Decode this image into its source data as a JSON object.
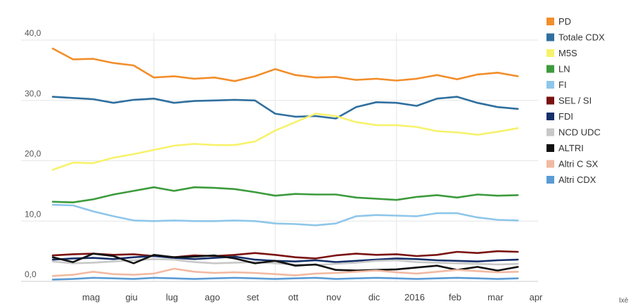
{
  "chart_data": {
    "type": "line",
    "title": "",
    "xlabel": "",
    "ylabel": "",
    "ylim": [
      0,
      40
    ],
    "y_ticks": [
      "0,0",
      "10,0",
      "20,0",
      "30,0",
      "40,0"
    ],
    "x_ticks": [
      "mag",
      "giu",
      "lug",
      "ago",
      "set",
      "ott",
      "nov",
      "dic",
      "2016",
      "feb",
      "mar",
      "apr"
    ],
    "x_range": [
      0,
      12
    ],
    "legend_position": "right",
    "source": "Ixè",
    "series": [
      {
        "name": "PD",
        "color": "#f28e2b",
        "points": [
          [
            0,
            38.6
          ],
          [
            0.5,
            36.8
          ],
          [
            1,
            36.9
          ],
          [
            1.5,
            36.2
          ],
          [
            2,
            35.8
          ],
          [
            2.5,
            33.8
          ],
          [
            3,
            34.0
          ],
          [
            3.5,
            33.6
          ],
          [
            4,
            33.8
          ],
          [
            4.5,
            33.2
          ],
          [
            5,
            34.0
          ],
          [
            5.5,
            35.2
          ],
          [
            6,
            34.2
          ],
          [
            6.5,
            33.8
          ],
          [
            7,
            33.9
          ],
          [
            7.5,
            33.4
          ],
          [
            8,
            33.6
          ],
          [
            8.5,
            33.3
          ],
          [
            9,
            33.6
          ],
          [
            9.5,
            34.2
          ],
          [
            10,
            33.5
          ],
          [
            10.5,
            34.3
          ],
          [
            11,
            34.6
          ],
          [
            11.5,
            34.0
          ]
        ]
      },
      {
        "name": "Totale CDX",
        "color": "#2f6f9f",
        "points": [
          [
            0,
            30.6
          ],
          [
            0.5,
            30.4
          ],
          [
            1,
            30.2
          ],
          [
            1.5,
            29.6
          ],
          [
            2,
            30.1
          ],
          [
            2.5,
            30.3
          ],
          [
            3,
            29.6
          ],
          [
            3.5,
            29.9
          ],
          [
            4,
            30.0
          ],
          [
            4.5,
            30.1
          ],
          [
            5,
            30.0
          ],
          [
            5.5,
            27.8
          ],
          [
            6,
            27.3
          ],
          [
            6.5,
            27.4
          ],
          [
            7,
            27.0
          ],
          [
            7.5,
            28.9
          ],
          [
            8,
            29.7
          ],
          [
            8.5,
            29.6
          ],
          [
            9,
            29.1
          ],
          [
            9.5,
            30.3
          ],
          [
            10,
            30.6
          ],
          [
            10.5,
            29.6
          ],
          [
            11,
            28.9
          ],
          [
            11.5,
            28.6
          ]
        ]
      },
      {
        "name": "M5S",
        "color": "#f7f26b",
        "points": [
          [
            0,
            18.5
          ],
          [
            0.5,
            19.7
          ],
          [
            1,
            19.6
          ],
          [
            1.5,
            20.5
          ],
          [
            2,
            21.1
          ],
          [
            2.5,
            21.8
          ],
          [
            3,
            22.5
          ],
          [
            3.5,
            22.8
          ],
          [
            4,
            22.6
          ],
          [
            4.5,
            22.6
          ],
          [
            5,
            23.2
          ],
          [
            5.5,
            25.0
          ],
          [
            6,
            26.4
          ],
          [
            6.5,
            27.8
          ],
          [
            7,
            27.4
          ],
          [
            7.5,
            26.4
          ],
          [
            8,
            25.9
          ],
          [
            8.5,
            25.9
          ],
          [
            9,
            25.6
          ],
          [
            9.5,
            24.9
          ],
          [
            10,
            24.7
          ],
          [
            10.5,
            24.3
          ],
          [
            11,
            24.8
          ],
          [
            11.5,
            25.4
          ]
        ]
      },
      {
        "name": "LN",
        "color": "#3c9b3c",
        "points": [
          [
            0,
            13.2
          ],
          [
            0.5,
            13.1
          ],
          [
            1,
            13.6
          ],
          [
            1.5,
            14.4
          ],
          [
            2,
            15.0
          ],
          [
            2.5,
            15.6
          ],
          [
            3,
            15.0
          ],
          [
            3.5,
            15.6
          ],
          [
            4,
            15.5
          ],
          [
            4.5,
            15.3
          ],
          [
            5,
            14.8
          ],
          [
            5.5,
            14.2
          ],
          [
            6,
            14.5
          ],
          [
            6.5,
            14.4
          ],
          [
            7,
            14.4
          ],
          [
            7.5,
            13.9
          ],
          [
            8,
            13.7
          ],
          [
            8.5,
            13.5
          ],
          [
            9,
            14.0
          ],
          [
            9.5,
            14.3
          ],
          [
            10,
            13.9
          ],
          [
            10.5,
            14.4
          ],
          [
            11,
            14.2
          ],
          [
            11.5,
            14.3
          ]
        ]
      },
      {
        "name": "FI",
        "color": "#8ec6ea",
        "points": [
          [
            0,
            12.7
          ],
          [
            0.5,
            12.6
          ],
          [
            1,
            11.6
          ],
          [
            1.5,
            10.8
          ],
          [
            2,
            10.1
          ],
          [
            2.5,
            10.0
          ],
          [
            3,
            10.1
          ],
          [
            3.5,
            10.0
          ],
          [
            4,
            10.0
          ],
          [
            4.5,
            10.1
          ],
          [
            5,
            10.0
          ],
          [
            5.5,
            9.6
          ],
          [
            6,
            9.5
          ],
          [
            6.5,
            9.3
          ],
          [
            7,
            9.6
          ],
          [
            7.5,
            10.8
          ],
          [
            8,
            11.0
          ],
          [
            8.5,
            10.9
          ],
          [
            9,
            10.8
          ],
          [
            9.5,
            11.3
          ],
          [
            10,
            11.3
          ],
          [
            10.5,
            10.6
          ],
          [
            11,
            10.2
          ],
          [
            11.5,
            10.1
          ]
        ]
      },
      {
        "name": "SEL / SI",
        "color": "#7a1212",
        "points": [
          [
            0,
            4.3
          ],
          [
            0.5,
            4.5
          ],
          [
            1,
            4.6
          ],
          [
            1.5,
            4.4
          ],
          [
            2,
            4.5
          ],
          [
            2.5,
            4.2
          ],
          [
            3,
            4.0
          ],
          [
            3.5,
            4.3
          ],
          [
            4,
            4.2
          ],
          [
            4.5,
            4.4
          ],
          [
            5,
            4.7
          ],
          [
            5.5,
            4.4
          ],
          [
            6,
            4.0
          ],
          [
            6.5,
            3.8
          ],
          [
            7,
            4.3
          ],
          [
            7.5,
            4.6
          ],
          [
            8,
            4.4
          ],
          [
            8.5,
            4.5
          ],
          [
            9,
            4.2
          ],
          [
            9.5,
            4.4
          ],
          [
            10,
            4.9
          ],
          [
            10.5,
            4.7
          ],
          [
            11,
            5.0
          ],
          [
            11.5,
            4.9
          ]
        ]
      },
      {
        "name": "FDI",
        "color": "#15306a",
        "points": [
          [
            0,
            3.6
          ],
          [
            0.5,
            3.8
          ],
          [
            1,
            3.9
          ],
          [
            1.5,
            3.7
          ],
          [
            2,
            4.0
          ],
          [
            2.5,
            4.2
          ],
          [
            3,
            3.9
          ],
          [
            3.5,
            3.7
          ],
          [
            4,
            3.9
          ],
          [
            4.5,
            4.1
          ],
          [
            5,
            3.6
          ],
          [
            5.5,
            3.4
          ],
          [
            6,
            3.3
          ],
          [
            6.5,
            3.5
          ],
          [
            7,
            3.2
          ],
          [
            7.5,
            3.4
          ],
          [
            8,
            3.6
          ],
          [
            8.5,
            3.8
          ],
          [
            9,
            3.7
          ],
          [
            9.5,
            3.5
          ],
          [
            10,
            3.4
          ],
          [
            10.5,
            3.3
          ],
          [
            11,
            3.5
          ],
          [
            11.5,
            3.6
          ]
        ]
      },
      {
        "name": "NCD UDC",
        "color": "#c8c8c8",
        "points": [
          [
            0,
            3.3
          ],
          [
            0.5,
            3.0
          ],
          [
            1,
            3.1
          ],
          [
            1.5,
            3.3
          ],
          [
            2,
            3.5
          ],
          [
            2.5,
            3.7
          ],
          [
            3,
            3.6
          ],
          [
            3.5,
            3.2
          ],
          [
            4,
            3.0
          ],
          [
            4.5,
            3.1
          ],
          [
            5,
            3.2
          ],
          [
            5.5,
            3.0
          ],
          [
            6,
            2.8
          ],
          [
            6.5,
            2.7
          ],
          [
            7,
            2.9
          ],
          [
            7.5,
            3.1
          ],
          [
            8,
            3.4
          ],
          [
            8.5,
            3.5
          ],
          [
            9,
            3.2
          ],
          [
            9.5,
            3.1
          ],
          [
            10,
            3.0
          ],
          [
            10.5,
            2.9
          ],
          [
            11,
            2.8
          ],
          [
            11.5,
            2.9
          ]
        ]
      },
      {
        "name": "ALTRI",
        "color": "#111111",
        "points": [
          [
            0,
            4.0
          ],
          [
            0.5,
            3.2
          ],
          [
            1,
            4.6
          ],
          [
            1.5,
            4.2
          ],
          [
            2,
            3.0
          ],
          [
            2.5,
            4.4
          ],
          [
            3,
            4.0
          ],
          [
            3.5,
            4.1
          ],
          [
            4,
            4.3
          ],
          [
            4.5,
            3.8
          ],
          [
            5,
            3.0
          ],
          [
            5.5,
            3.4
          ],
          [
            6,
            2.6
          ],
          [
            6.5,
            2.8
          ],
          [
            7,
            1.9
          ],
          [
            7.5,
            1.8
          ],
          [
            8,
            1.9
          ],
          [
            8.5,
            2.0
          ],
          [
            9,
            2.3
          ],
          [
            9.5,
            2.6
          ],
          [
            10,
            1.9
          ],
          [
            10.5,
            2.4
          ],
          [
            11,
            1.8
          ],
          [
            11.5,
            2.4
          ]
        ]
      },
      {
        "name": "Altri C SX",
        "color": "#f2b9a2",
        "points": [
          [
            0,
            0.9
          ],
          [
            0.5,
            1.1
          ],
          [
            1,
            1.6
          ],
          [
            1.5,
            1.2
          ],
          [
            2,
            1.1
          ],
          [
            2.5,
            1.3
          ],
          [
            3,
            2.1
          ],
          [
            3.5,
            1.6
          ],
          [
            4,
            1.4
          ],
          [
            4.5,
            1.5
          ],
          [
            5,
            1.4
          ],
          [
            5.5,
            1.2
          ],
          [
            6,
            1.0
          ],
          [
            6.5,
            1.3
          ],
          [
            7,
            1.4
          ],
          [
            7.5,
            1.6
          ],
          [
            8,
            1.8
          ],
          [
            8.5,
            1.5
          ],
          [
            9,
            1.3
          ],
          [
            9.5,
            1.6
          ],
          [
            10,
            1.9
          ],
          [
            10.5,
            1.7
          ],
          [
            11,
            1.5
          ],
          [
            11.5,
            1.6
          ]
        ]
      },
      {
        "name": "Altri CDX",
        "color": "#5a9bd5",
        "points": [
          [
            0,
            0.3
          ],
          [
            0.5,
            0.4
          ],
          [
            1,
            0.6
          ],
          [
            1.5,
            0.5
          ],
          [
            2,
            0.4
          ],
          [
            2.5,
            0.6
          ],
          [
            3,
            0.5
          ],
          [
            3.5,
            0.4
          ],
          [
            4,
            0.5
          ],
          [
            4.5,
            0.6
          ],
          [
            5,
            0.5
          ],
          [
            5.5,
            0.4
          ],
          [
            6,
            0.5
          ],
          [
            6.5,
            0.6
          ],
          [
            7,
            0.4
          ],
          [
            7.5,
            0.5
          ],
          [
            8,
            0.6
          ],
          [
            8.5,
            0.5
          ],
          [
            9,
            0.4
          ],
          [
            9.5,
            0.5
          ],
          [
            10,
            0.6
          ],
          [
            10.5,
            0.5
          ],
          [
            11,
            0.4
          ],
          [
            11.5,
            0.5
          ]
        ]
      }
    ]
  }
}
